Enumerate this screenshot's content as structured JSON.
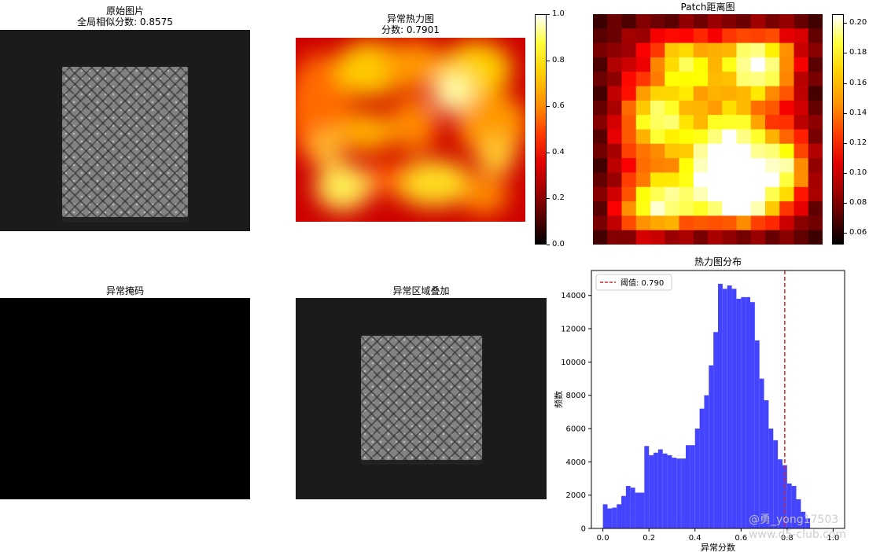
{
  "panels": {
    "original": {
      "title_line1": "原始图片",
      "title_line2": "全局相似分数: 0.8575"
    },
    "heatmap": {
      "title_line1": "异常热力图",
      "title_line2": "分数: 0.7901",
      "colorbar_ticks": [
        "0.0",
        "0.2",
        "0.4",
        "0.6",
        "0.8",
        "1.0"
      ],
      "colorbar_range": [
        0.0,
        1.0
      ]
    },
    "patch": {
      "title": "Patch距离图",
      "colorbar_ticks": [
        "0.06",
        "0.08",
        "0.10",
        "0.12",
        "0.14",
        "0.16",
        "0.18",
        "0.20"
      ],
      "colorbar_range": [
        0.052,
        0.206
      ]
    },
    "mask": {
      "title": "异常掩码"
    },
    "overlay": {
      "title": "异常区域叠加"
    }
  },
  "watermark": {
    "line1": "@勇_yong17503",
    "line2": "www.d5-club.com"
  },
  "colors": {
    "hist_bar": "#4444ff",
    "threshold_line": "#d62728",
    "background_dark": "#1b1b1b",
    "cookie_gray": "#8a8a8a"
  },
  "chart_data": {
    "type": "bar",
    "title": "热力图分布",
    "xlabel": "异常分数",
    "ylabel": "频数",
    "xlim": [
      -0.05,
      1.05
    ],
    "ylim": [
      0,
      15500
    ],
    "xticks": [
      "0.0",
      "0.2",
      "0.4",
      "0.6",
      "0.8",
      "1.0"
    ],
    "xtick_values": [
      0.0,
      0.2,
      0.4,
      0.6,
      0.8,
      1.0
    ],
    "yticks": [
      "0",
      "2000",
      "4000",
      "6000",
      "8000",
      "10000",
      "12000",
      "14000"
    ],
    "ytick_values": [
      0,
      2000,
      4000,
      6000,
      8000,
      10000,
      12000,
      14000
    ],
    "bin_start": 0.0,
    "bin_width": 0.02,
    "values": [
      1450,
      1200,
      1250,
      1450,
      1950,
      2550,
      2450,
      2150,
      2150,
      4950,
      4400,
      4550,
      4750,
      4500,
      4400,
      4250,
      4200,
      4200,
      5000,
      5000,
      6000,
      7200,
      8000,
      9800,
      11800,
      14700,
      14400,
      14600,
      14400,
      13800,
      13900,
      13900,
      13600,
      11300,
      9000,
      7700,
      6000,
      5300,
      4150,
      3800,
      2700,
      2550,
      1750,
      1000,
      600
    ],
    "threshold": {
      "value": 0.79,
      "label": "阈值: 0.790",
      "style": "dashed"
    },
    "legend_position": "top-left",
    "grid": false
  }
}
